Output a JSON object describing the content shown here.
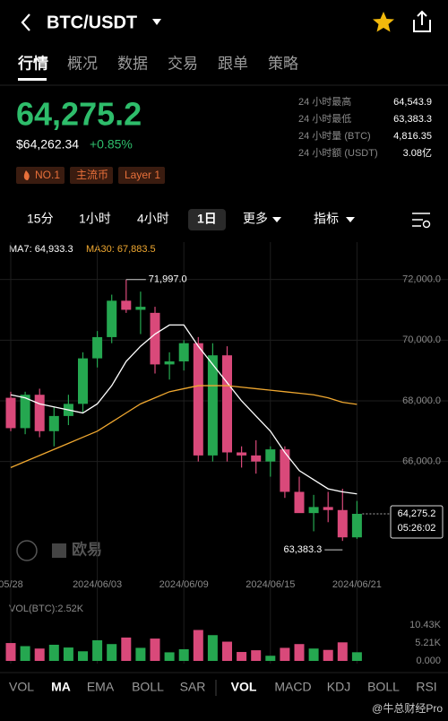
{
  "header": {
    "symbol": "BTC/USDT"
  },
  "tabs": [
    "行情",
    "概况",
    "数据",
    "交易",
    "跟单",
    "策略"
  ],
  "ticker": {
    "price": "64,275.2",
    "usd_price": "$64,262.34",
    "change": "+0.85%",
    "stats": [
      {
        "label": "24 小时最高",
        "value": "64,543.9"
      },
      {
        "label": "24 小时最低",
        "value": "63,383.3"
      },
      {
        "label": "24 小时量 (BTC)",
        "value": "4,816.35"
      },
      {
        "label": "24 小时额 (USDT)",
        "value": "3.08亿"
      }
    ],
    "tags": [
      "NO.1",
      "主流币",
      "Layer 1"
    ]
  },
  "intervals": [
    "15分",
    "1小时",
    "4小时",
    "1日",
    "更多",
    "指标"
  ],
  "chart_data": {
    "type": "candlestick",
    "categories": [
      "05/28",
      null,
      null,
      null,
      null,
      null,
      "2024/06/03",
      null,
      null,
      null,
      null,
      null,
      "2024/06/09",
      null,
      null,
      null,
      null,
      null,
      "2024/06/15",
      null,
      null,
      null,
      null,
      null,
      "2024/06/21"
    ],
    "open": [
      68100,
      67100,
      68200,
      67000,
      67500,
      67900,
      69400,
      70100,
      71300,
      71000,
      70900,
      69200,
      69300,
      69900,
      66200,
      69500,
      66300,
      66200,
      66000,
      66400,
      65000,
      64300,
      64500,
      64400,
      63500
    ],
    "high": [
      68300,
      68300,
      68400,
      67800,
      68200,
      69600,
      70300,
      71500,
      71997.0,
      71600,
      71100,
      69600,
      70000,
      70100,
      69900,
      69800,
      66500,
      66700,
      66500,
      66500,
      65500,
      64900,
      65000,
      65100,
      64700
    ],
    "low": [
      67000,
      66900,
      66800,
      66500,
      67200,
      67600,
      69100,
      69900,
      70900,
      70200,
      68900,
      68700,
      69000,
      66000,
      66000,
      66000,
      65800,
      65600,
      65500,
      64800,
      64400,
      63700,
      64000,
      63383.3,
      63450
    ],
    "close": [
      67100,
      68200,
      67000,
      67500,
      67900,
      69400,
      70100,
      71300,
      71000,
      71100,
      69200,
      69300,
      69900,
      66200,
      69500,
      66300,
      66200,
      66000,
      66400,
      65000,
      64300,
      64500,
      64400,
      63500,
      64275.2
    ],
    "up_color": "#25a750",
    "down_color": "#d9497a",
    "series": [
      {
        "name": "MA7:",
        "color": "#ffffff",
        "legend_label": "64,933.3",
        "values": [
          68200,
          68100,
          67900,
          67800,
          67700,
          67600,
          67900,
          68500,
          69300,
          69800,
          70200,
          70500,
          70500,
          69800,
          69200,
          68600,
          68000,
          67500,
          67000,
          66300,
          65700,
          65400,
          65100,
          65000,
          64933.3
        ]
      },
      {
        "name": "MA30:",
        "color": "#f0a830",
        "legend_label": "67,883.5",
        "values": [
          65800,
          66000,
          66200,
          66400,
          66600,
          66800,
          67000,
          67300,
          67600,
          67900,
          68100,
          68300,
          68400,
          68500,
          68500,
          68500,
          68450,
          68400,
          68350,
          68300,
          68250,
          68200,
          68100,
          67950,
          67883.5
        ]
      }
    ],
    "annotations": [
      "71,997.0",
      "63,383.3"
    ],
    "last_price_label": "64,275.2",
    "countdown": "05:26:02",
    "ylim": [
      62590,
      72640
    ],
    "yticks": [
      {
        "value": 72000,
        "label": "72,000.0"
      },
      {
        "value": 70000,
        "label": "70,000.0"
      },
      {
        "value": 68000,
        "label": "68,000.0"
      },
      {
        "value": 66000,
        "label": "66,000.0"
      }
    ],
    "grid": true,
    "watermark": "欧易",
    "volume": {
      "title": "VOL(BTC):2.52K",
      "values": [
        5200,
        4300,
        3600,
        4700,
        3900,
        2800,
        6000,
        4900,
        6800,
        3800,
        6500,
        2500,
        3400,
        9000,
        7500,
        5600,
        2600,
        3100,
        1500,
        3800,
        4900,
        3600,
        3200,
        5400,
        2520
      ],
      "ylim": [
        0,
        12260
      ],
      "yticks": [
        {
          "value": 10430,
          "label": "10.43K"
        },
        {
          "value": 5210,
          "label": "5.21K"
        },
        {
          "value": 0,
          "label": "0.000"
        }
      ]
    }
  },
  "indicators": {
    "main": [
      "VOL",
      "MA",
      "EMA",
      "BOLL",
      "SAR"
    ],
    "sub": [
      "VOL",
      "MACD",
      "KDJ",
      "BOLL",
      "RSI"
    ]
  },
  "watermark_footer": "@牛总财经Pro"
}
